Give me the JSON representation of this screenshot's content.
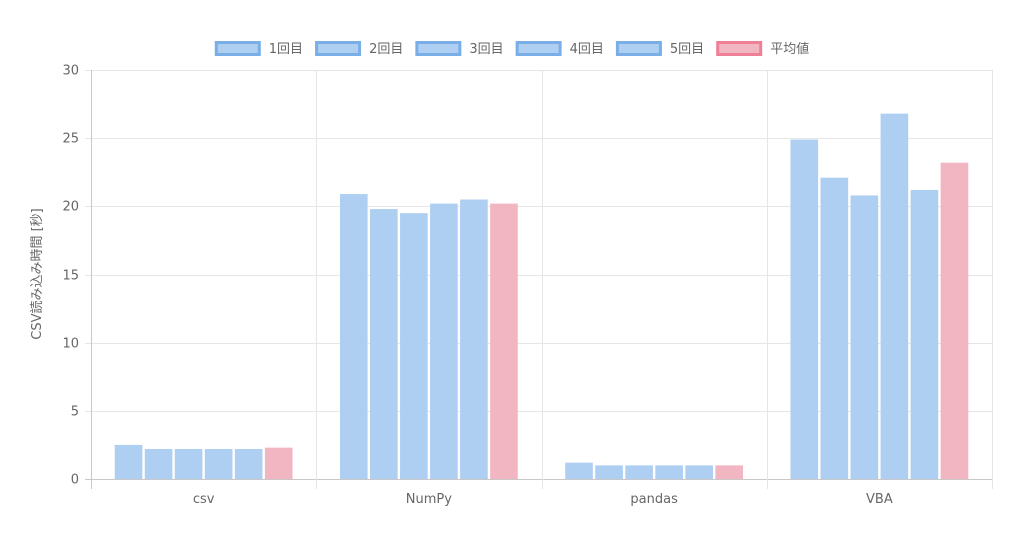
{
  "chart_data": {
    "type": "bar",
    "title": "",
    "xlabel": "",
    "ylabel": "CSV読み込み時間 [秒]",
    "ylim": [
      0,
      30
    ],
    "yticks": [
      0,
      5,
      10,
      15,
      20,
      25,
      30
    ],
    "grid": true,
    "legend_position": "top",
    "categories": [
      "csv",
      "NumPy",
      "pandas",
      "VBA"
    ],
    "series": [
      {
        "name": "1回目",
        "values": [
          2.5,
          20.9,
          1.2,
          24.9
        ],
        "fill": "#aecff2",
        "stroke": "#7aaee6"
      },
      {
        "name": "2回目",
        "values": [
          2.2,
          19.8,
          1.0,
          22.1
        ],
        "fill": "#aecff2",
        "stroke": "#7aaee6"
      },
      {
        "name": "3回目",
        "values": [
          2.2,
          19.5,
          1.0,
          20.8
        ],
        "fill": "#aecff2",
        "stroke": "#7aaee6"
      },
      {
        "name": "4回目",
        "values": [
          2.2,
          20.2,
          1.0,
          26.8
        ],
        "fill": "#aecff2",
        "stroke": "#7aaee6"
      },
      {
        "name": "5回目",
        "values": [
          2.2,
          20.5,
          1.0,
          21.2
        ],
        "fill": "#aecff2",
        "stroke": "#7aaee6"
      },
      {
        "name": "平均値",
        "values": [
          2.3,
          20.2,
          1.0,
          23.2
        ],
        "fill": "#f2b5c2",
        "stroke": "#ee7f96"
      }
    ]
  }
}
